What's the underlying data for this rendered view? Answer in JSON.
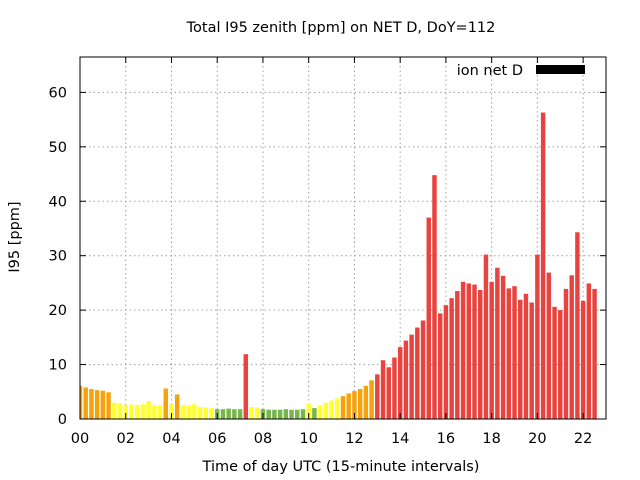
{
  "chart_data": {
    "type": "bar",
    "title": "Total I95 zenith [ppm] on NET D, DoY=112",
    "xlabel": "Time of day UTC (15-minute intervals)",
    "ylabel": "I95 [ppm]",
    "xlim": [
      0,
      23
    ],
    "ylim": [
      0,
      66.5
    ],
    "xticks": [
      "00",
      "02",
      "04",
      "06",
      "08",
      "10",
      "12",
      "14",
      "16",
      "18",
      "20",
      "22"
    ],
    "xtick_values": [
      0,
      2,
      4,
      6,
      8,
      10,
      12,
      14,
      16,
      18,
      20,
      22
    ],
    "yticks": [
      0,
      10,
      20,
      30,
      40,
      50,
      60
    ],
    "grid": true,
    "legend": {
      "label": "ion net D",
      "color": "#000000",
      "position": "top-right"
    },
    "colors": {
      "green": "#77b64a",
      "yellow": "#ffff33",
      "orange": "#f5a20e",
      "red": "#e8433f"
    },
    "series": [
      {
        "interval_hours": 0.25,
        "values": [
          6.1,
          5.8,
          5.5,
          5.3,
          5.2,
          4.9,
          3.0,
          2.9,
          2.6,
          2.7,
          2.6,
          2.7,
          3.3,
          2.5,
          2.5,
          5.6,
          2.7,
          4.5,
          2.5,
          2.5,
          2.7,
          2.2,
          2.1,
          2.0,
          1.8,
          1.8,
          1.9,
          1.8,
          1.8,
          11.9,
          2.2,
          2.1,
          1.8,
          1.7,
          1.7,
          1.7,
          1.8,
          1.7,
          1.7,
          1.8,
          2.9,
          2.0,
          2.5,
          3.0,
          3.4,
          3.8,
          4.2,
          4.7,
          5.1,
          5.5,
          6.1,
          7.1,
          8.2,
          10.8,
          9.5,
          11.3,
          13.2,
          14.4,
          15.5,
          16.8,
          18.1,
          37.0,
          44.8,
          19.4,
          20.9,
          22.2,
          23.5,
          25.2,
          24.9,
          24.7,
          23.7,
          30.2,
          25.2,
          27.8,
          26.3,
          24.0,
          24.4,
          21.9,
          23.0,
          21.4,
          30.2,
          56.3,
          26.9,
          20.6,
          20.0,
          23.9,
          26.4,
          34.3,
          21.7,
          24.9,
          23.9
        ],
        "levels": [
          "orange",
          "orange",
          "orange",
          "orange",
          "orange",
          "orange",
          "yellow",
          "yellow",
          "yellow",
          "yellow",
          "yellow",
          "yellow",
          "yellow",
          "yellow",
          "yellow",
          "orange",
          "yellow",
          "orange",
          "yellow",
          "yellow",
          "yellow",
          "yellow",
          "yellow",
          "yellow",
          "green",
          "green",
          "green",
          "green",
          "green",
          "red",
          "yellow",
          "yellow",
          "green",
          "green",
          "green",
          "green",
          "green",
          "green",
          "green",
          "green",
          "yellow",
          "green",
          "yellow",
          "yellow",
          "yellow",
          "yellow",
          "orange",
          "orange",
          "orange",
          "orange",
          "orange",
          "orange",
          "red",
          "red",
          "red",
          "red",
          "red",
          "red",
          "red",
          "red",
          "red",
          "red",
          "red",
          "red",
          "red",
          "red",
          "red",
          "red",
          "red",
          "red",
          "red",
          "red",
          "red",
          "red",
          "red",
          "red",
          "red",
          "red",
          "red",
          "red",
          "red",
          "red",
          "red",
          "red",
          "red",
          "red",
          "red",
          "red",
          "red",
          "red",
          "red"
        ]
      }
    ]
  }
}
